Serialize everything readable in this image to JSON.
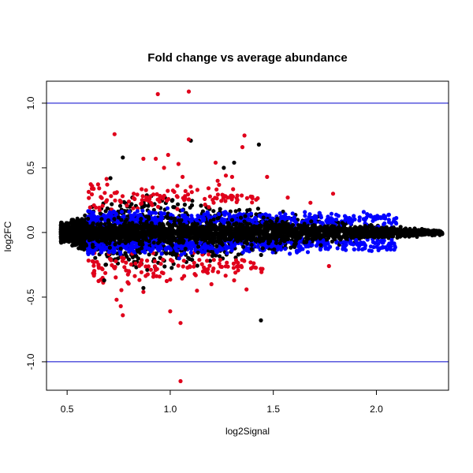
{
  "chart_data": {
    "type": "scatter",
    "title": "Fold change vs average abundance",
    "xlabel": "log2Signal",
    "ylabel": "log2FC",
    "xlim": [
      0.4,
      2.35
    ],
    "ylim": [
      -1.22,
      1.17
    ],
    "x_ticks": [
      0.5,
      1.0,
      1.5,
      2.0
    ],
    "x_tick_labels": [
      "0.5",
      "1.0",
      "1.5",
      "2.0"
    ],
    "y_ticks": [
      -1.0,
      -0.5,
      0.0,
      0.5,
      1.0
    ],
    "y_tick_labels": [
      "-1.0",
      "-0.5",
      "0.0",
      "0.5",
      "1.0"
    ],
    "grid": false,
    "reference_lines": {
      "orientation": "horizontal",
      "y": [
        1.0,
        -1.0
      ],
      "color": "#0000cc"
    },
    "colors": {
      "black_points": "#000000",
      "blue_points": "#0000ff",
      "red_points": "#e0001b"
    },
    "red_outliers": [
      {
        "x": 0.94,
        "y": 1.07
      },
      {
        "x": 1.09,
        "y": 1.09
      },
      {
        "x": 0.73,
        "y": 0.76
      },
      {
        "x": 1.36,
        "y": 0.75
      },
      {
        "x": 1.09,
        "y": 0.72
      },
      {
        "x": 1.35,
        "y": 0.66
      },
      {
        "x": 0.99,
        "y": 0.6
      },
      {
        "x": 0.93,
        "y": 0.57
      },
      {
        "x": 0.87,
        "y": 0.57
      },
      {
        "x": 1.04,
        "y": 0.53
      },
      {
        "x": 1.22,
        "y": 0.54
      },
      {
        "x": 0.97,
        "y": 0.5
      },
      {
        "x": 1.27,
        "y": 0.44
      },
      {
        "x": 1.3,
        "y": 0.43
      },
      {
        "x": 1.47,
        "y": 0.43
      },
      {
        "x": 1.23,
        "y": 0.4
      },
      {
        "x": 1.06,
        "y": 0.43
      },
      {
        "x": 1.79,
        "y": 0.3
      },
      {
        "x": 1.57,
        "y": 0.27
      },
      {
        "x": 1.68,
        "y": 0.23
      },
      {
        "x": 0.74,
        "y": -0.52
      },
      {
        "x": 0.76,
        "y": -0.57
      },
      {
        "x": 0.77,
        "y": -0.64
      },
      {
        "x": 1.0,
        "y": -0.61
      },
      {
        "x": 1.05,
        "y": -0.7
      },
      {
        "x": 1.05,
        "y": -1.15
      },
      {
        "x": 1.37,
        "y": -0.44
      },
      {
        "x": 1.77,
        "y": -0.26
      },
      {
        "x": 0.87,
        "y": -0.46
      },
      {
        "x": 1.13,
        "y": -0.45
      },
      {
        "x": 1.31,
        "y": -0.37
      },
      {
        "x": 1.2,
        "y": -0.4
      }
    ],
    "black_outliers": [
      {
        "x": 0.77,
        "y": 0.58
      },
      {
        "x": 1.1,
        "y": 0.71
      },
      {
        "x": 1.43,
        "y": 0.68
      },
      {
        "x": 1.31,
        "y": 0.54
      },
      {
        "x": 1.44,
        "y": -0.68
      },
      {
        "x": 0.71,
        "y": 0.42
      },
      {
        "x": 0.87,
        "y": -0.43
      },
      {
        "x": 1.26,
        "y": 0.5
      },
      {
        "x": 0.68,
        "y": -0.37
      }
    ],
    "black_cloud": {
      "x_range": [
        0.47,
        2.32
      ],
      "center_y": 0.0,
      "approximate_half_spread_y": [
        {
          "x": 0.5,
          "value": 0.08
        },
        {
          "x": 0.7,
          "value": 0.28
        },
        {
          "x": 1.0,
          "value": 0.3
        },
        {
          "x": 1.3,
          "value": 0.22
        },
        {
          "x": 1.6,
          "value": 0.15
        },
        {
          "x": 2.0,
          "value": 0.06
        },
        {
          "x": 2.3,
          "value": 0.02
        }
      ]
    },
    "blue_bands": {
      "x_range": [
        0.6,
        2.1
      ],
      "upper_band_center_y": 0.1,
      "lower_band_center_y": -0.1
    },
    "red_bands": {
      "x_range": [
        0.6,
        1.9
      ],
      "upper_band_center_y": 0.27,
      "lower_band_center_y": -0.27
    }
  }
}
